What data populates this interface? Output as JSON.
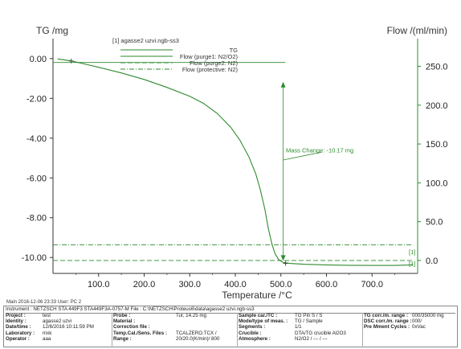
{
  "chart_data": {
    "type": "line",
    "title": "[1] agasse2 uzvi.ngb-ss3",
    "xlabel": "Temperature /°C",
    "ylabel_left": "TG /mg",
    "ylabel_right": "Flow /(ml/min)",
    "xlim": [
      0,
      800
    ],
    "ylim_left": [
      -10.8,
      0.6
    ],
    "ylim_right": [
      -16.7,
      275.4
    ],
    "x_ticks": [
      100,
      200,
      300,
      400,
      500,
      600,
      700
    ],
    "x_tick_labels": [
      "100.0",
      "200.0",
      "300.0",
      "400.0",
      "500.0",
      "600.0",
      "700.0"
    ],
    "y_left_ticks": [
      0,
      -2,
      -4,
      -6,
      -8,
      -10
    ],
    "y_left_tick_labels": [
      "0.00",
      "-2.00",
      "-4.00",
      "-6.00",
      "-8.00",
      "-10.00"
    ],
    "y_right_ticks": [
      0,
      50,
      100,
      150,
      200,
      250
    ],
    "y_right_tick_labels": [
      "0.0",
      "50.0",
      "100.0",
      "150.0",
      "200.0",
      "250.0"
    ],
    "legend": [
      {
        "label": "TG",
        "style": "solid"
      },
      {
        "label": "Flow (purge1: N2/O2)",
        "style": "solid"
      },
      {
        "label": "Flow (purge2: N2)",
        "style": "dashed"
      },
      {
        "label": "Flow (protective: N2)",
        "style": "dashdot"
      }
    ],
    "series": [
      {
        "name": "TG",
        "axis": "left",
        "x": [
          10,
          20,
          40,
          60,
          80,
          100,
          150,
          200,
          250,
          300,
          330,
          360,
          390,
          410,
          430,
          445,
          455,
          465,
          472,
          480,
          487,
          495,
          505,
          520,
          550,
          600,
          650,
          700,
          750,
          780,
          790
        ],
        "y": [
          -0.02,
          -0.05,
          -0.12,
          -0.22,
          -0.33,
          -0.44,
          -0.72,
          -1.05,
          -1.45,
          -1.9,
          -2.25,
          -2.75,
          -3.45,
          -4.1,
          -4.95,
          -5.8,
          -6.6,
          -7.6,
          -8.5,
          -9.3,
          -9.8,
          -10.1,
          -10.25,
          -10.3,
          -10.34,
          -10.37,
          -10.39,
          -10.4,
          -10.4,
          -10.38,
          -10.35
        ]
      },
      {
        "name": "Flow (purge1: N2/O2)",
        "axis": "right",
        "x": [
          0,
          510
        ],
        "y": [
          255,
          255
        ]
      },
      {
        "name": "Flow (purge2: N2)",
        "axis": "right",
        "x": [
          0,
          790
        ],
        "y": [
          0,
          0
        ]
      },
      {
        "name": "Flow (protective: N2)",
        "axis": "right",
        "x": [
          0,
          790
        ],
        "y": [
          20,
          20
        ]
      }
    ],
    "annotations": [
      {
        "text": "Mass Change: -10.17 mg",
        "x": 500,
        "y": -4.6
      },
      {
        "text": "[1]",
        "x": 790,
        "y": -9.7
      },
      {
        "text": "[1]",
        "x": 790,
        "y": -10.3
      }
    ],
    "colors": {
      "line": "#2e8b2e",
      "axis": "#333333",
      "grid": "#dddddd"
    }
  },
  "main_label": "Main   2016-12-06 23:33   User: PC 2",
  "footer": {
    "row0": "Instrument :   NETZSCH STA 449F3 STA449F3A-0757-M   File :  C:\\NETZSCH\\Proteus6\\data\\agasse2 uzvi.ngb-ss3",
    "col1": [
      {
        "k": "Project :",
        "v": "test"
      },
      {
        "k": "Identity :",
        "v": "agasse2 uzvi"
      },
      {
        "k": "Date/time :",
        "v": "12/6/2016 10:11:59 PM"
      },
      {
        "k": "Laboratory :",
        "v": "mxk"
      },
      {
        "k": "Operator :",
        "v": "aaa"
      }
    ],
    "col2": [
      {
        "k": "Probe :",
        "v": "Tur, 14.25 mg"
      },
      {
        "k": "Material :",
        "v": ""
      },
      {
        "k": "Correction file :",
        "v": ""
      },
      {
        "k": "Temp.Cal./Sens. Files :",
        "v": "TCALZERO.TCX /"
      },
      {
        "k": "Range :",
        "v": "20/20.0(K/min)/ 800"
      }
    ],
    "col3": [
      {
        "k": "Sample car./TC :",
        "v": "TG Pin S / S"
      },
      {
        "k": "Mode/type of meas. :",
        "v": "TG / Sample"
      },
      {
        "k": "Segments :",
        "v": "1/1"
      },
      {
        "k": "Crucible :",
        "v": "DTA/TG crucible Al2O3"
      },
      {
        "k": "Atmosphere :",
        "v": "N2/O2 / --- / ---"
      }
    ],
    "col4": [
      {
        "k": "TG corr./m. range :",
        "v": "000/35000 mg"
      },
      {
        "k": "DSC corr./m. range :",
        "v": "000/"
      },
      {
        "k": "Pre Mment Cycles :",
        "v": "0xVac"
      }
    ]
  }
}
